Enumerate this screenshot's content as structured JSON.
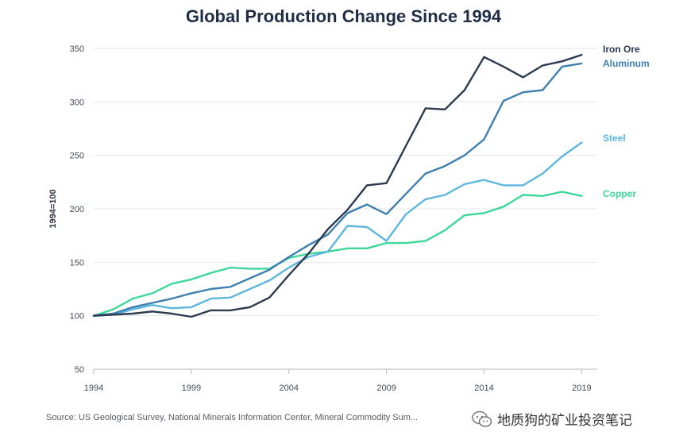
{
  "chart_data": {
    "type": "line",
    "title": "Global Production Change Since 1994",
    "ylabel": "1994=100",
    "xlabel": "",
    "xlim": [
      1994,
      2019.8
    ],
    "ylim": [
      50,
      350
    ],
    "xticks": [
      1994,
      1999,
      2004,
      2009,
      2014,
      2019
    ],
    "yticks": [
      50,
      100,
      150,
      200,
      250,
      300,
      350
    ],
    "grid": "horizontal",
    "legend": "right, labels at line ends",
    "x": [
      1994,
      1995,
      1996,
      1997,
      1998,
      1999,
      2000,
      2001,
      2002,
      2003,
      2004,
      2005,
      2006,
      2007,
      2008,
      2009,
      2010,
      2011,
      2012,
      2013,
      2014,
      2015,
      2016,
      2017,
      2018,
      2019
    ],
    "series": [
      {
        "name": "Iron Ore",
        "color": "#2c3a50",
        "values": [
          100,
          101,
          102,
          104,
          102,
          99,
          105,
          105,
          108,
          117,
          138,
          158,
          181,
          199,
          222,
          224,
          259,
          294,
          293,
          311,
          342,
          333,
          323,
          334,
          338,
          344
        ]
      },
      {
        "name": "Aluminum",
        "color": "#3d7fb0",
        "values": [
          100,
          102,
          108,
          112,
          116,
          121,
          125,
          127,
          135,
          143,
          155,
          166,
          176,
          196,
          204,
          195,
          214,
          233,
          240,
          250,
          265,
          301,
          309,
          311,
          333,
          336
        ]
      },
      {
        "name": "Steel",
        "color": "#5db6dd",
        "values": [
          100,
          101,
          106,
          110,
          107,
          108,
          116,
          117,
          125,
          133,
          145,
          155,
          160,
          184,
          183,
          170,
          195,
          209,
          213,
          223,
          227,
          222,
          222,
          233,
          249,
          262
        ]
      },
      {
        "name": "Copper",
        "color": "#3ed79a",
        "values": [
          100,
          106,
          116,
          121,
          130,
          134,
          140,
          145,
          144,
          144,
          154,
          158,
          160,
          163,
          163,
          168,
          168,
          170,
          180,
          194,
          196,
          202,
          213,
          212,
          216,
          212
        ]
      }
    ]
  },
  "source": "Source: US Geological Survey, National Minerals Information Center, Mineral Commodity Sum...",
  "watermark": "地质狗的矿业投资笔记"
}
